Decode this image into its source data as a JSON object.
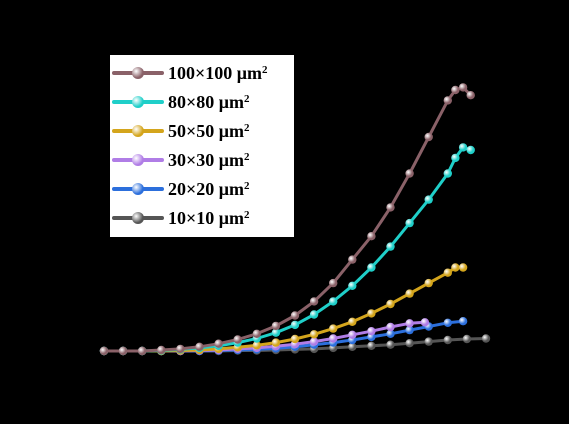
{
  "chart_data": {
    "type": "line",
    "title": "",
    "xlabel": "",
    "ylabel": "",
    "grid": false,
    "legend_position": "top-left",
    "background": "#000000",
    "series": [
      {
        "name": "100×100 μm",
        "sup": "2",
        "color": "#8a6168",
        "x": [
          0,
          0.05,
          0.1,
          0.15,
          0.2,
          0.25,
          0.3,
          0.35,
          0.4,
          0.45,
          0.5,
          0.55,
          0.6,
          0.65,
          0.7,
          0.75,
          0.8,
          0.85,
          0.9,
          0.92,
          0.94,
          0.96
        ],
        "y": [
          0,
          0,
          0,
          0.002,
          0.004,
          0.008,
          0.014,
          0.022,
          0.033,
          0.048,
          0.068,
          0.095,
          0.13,
          0.175,
          0.22,
          0.275,
          0.34,
          0.41,
          0.48,
          0.5,
          0.505,
          0.49
        ]
      },
      {
        "name": "80×80 μm",
        "sup": "2",
        "color": "#1fcfc9",
        "x": [
          0,
          0.05,
          0.1,
          0.15,
          0.2,
          0.25,
          0.3,
          0.35,
          0.4,
          0.45,
          0.5,
          0.55,
          0.6,
          0.65,
          0.7,
          0.75,
          0.8,
          0.85,
          0.9,
          0.92,
          0.94,
          0.96
        ],
        "y": [
          0,
          0,
          0,
          0.001,
          0.003,
          0.006,
          0.01,
          0.016,
          0.024,
          0.035,
          0.05,
          0.07,
          0.095,
          0.125,
          0.16,
          0.2,
          0.245,
          0.29,
          0.34,
          0.37,
          0.39,
          0.385
        ]
      },
      {
        "name": "50×50 μm",
        "sup": "2",
        "color": "#d4a51c",
        "x": [
          0,
          0.05,
          0.1,
          0.15,
          0.2,
          0.25,
          0.3,
          0.35,
          0.4,
          0.45,
          0.5,
          0.55,
          0.6,
          0.65,
          0.7,
          0.75,
          0.8,
          0.85,
          0.9,
          0.92,
          0.94
        ],
        "y": [
          0,
          0,
          0,
          0,
          0.001,
          0.002,
          0.004,
          0.007,
          0.011,
          0.016,
          0.023,
          0.032,
          0.043,
          0.056,
          0.072,
          0.09,
          0.11,
          0.13,
          0.15,
          0.16,
          0.16
        ]
      },
      {
        "name": "30×30 μm",
        "sup": "2",
        "color": "#b07de6",
        "x": [
          0,
          0.05,
          0.1,
          0.15,
          0.2,
          0.25,
          0.3,
          0.35,
          0.4,
          0.45,
          0.5,
          0.55,
          0.6,
          0.65,
          0.7,
          0.75,
          0.8,
          0.84
        ],
        "y": [
          0,
          0,
          0,
          0,
          0,
          0.001,
          0.002,
          0.004,
          0.006,
          0.009,
          0.013,
          0.018,
          0.024,
          0.031,
          0.038,
          0.046,
          0.053,
          0.055
        ]
      },
      {
        "name": "20×20 μm",
        "sup": "2",
        "color": "#2c6fdc",
        "x": [
          0,
          0.05,
          0.1,
          0.15,
          0.2,
          0.25,
          0.3,
          0.35,
          0.4,
          0.45,
          0.5,
          0.55,
          0.6,
          0.65,
          0.7,
          0.75,
          0.8,
          0.85,
          0.9,
          0.94
        ],
        "y": [
          0,
          0,
          0,
          0,
          0,
          0,
          0.001,
          0.002,
          0.003,
          0.005,
          0.008,
          0.012,
          0.016,
          0.021,
          0.027,
          0.033,
          0.04,
          0.047,
          0.054,
          0.057
        ]
      },
      {
        "name": "10×10 μm",
        "sup": "2",
        "color": "#555555",
        "x": [
          0,
          0.05,
          0.1,
          0.15,
          0.2,
          0.25,
          0.3,
          0.35,
          0.4,
          0.45,
          0.5,
          0.55,
          0.6,
          0.65,
          0.7,
          0.75,
          0.8,
          0.85,
          0.9,
          0.95,
          1.0
        ],
        "y": [
          0,
          0,
          0,
          0,
          0,
          0,
          0,
          0.001,
          0.001,
          0.002,
          0.003,
          0.004,
          0.006,
          0.008,
          0.01,
          0.012,
          0.015,
          0.018,
          0.021,
          0.023,
          0.024
        ]
      }
    ]
  }
}
